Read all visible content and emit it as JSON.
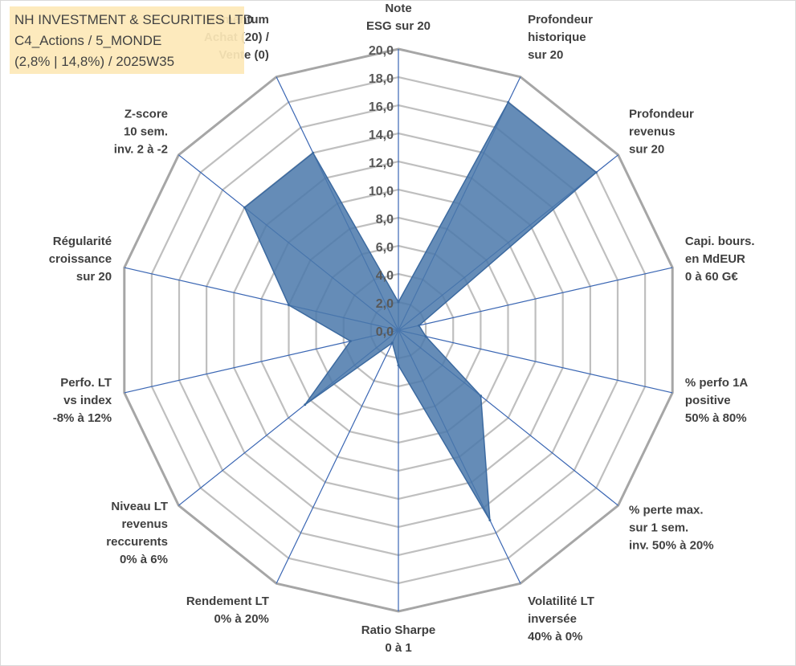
{
  "info_box": {
    "line1": "NH INVESTMENT & SECURITIES LTD",
    "line2": "C4_Actions / 5_MONDE",
    "line3": "(2,8% | 14,8%) / 2025W35"
  },
  "colors": {
    "series_fill": "#4a78aa",
    "series_stroke": "#3c6aa0",
    "grid": "#bfbfbf",
    "spokes": "#3a66b3",
    "info_bg": "#fde9b8"
  },
  "chart_data": {
    "type": "radar",
    "title": "",
    "range": [
      0,
      20
    ],
    "tick_step": 2,
    "tick_labels": [
      "0,0",
      "2,0",
      "4,0",
      "6,0",
      "8,0",
      "10,0",
      "12,0",
      "14,0",
      "16,0",
      "18,0",
      "20,0"
    ],
    "grid": true,
    "categories": [
      [
        "Note",
        "ESG sur 20"
      ],
      [
        "Profondeur",
        "historique",
        "sur 20"
      ],
      [
        "Profondeur",
        "revenus",
        "sur 20"
      ],
      [
        "Capi. bours.",
        "en MdEUR",
        "0 à 60 G€"
      ],
      [
        "% perfo 1A",
        "positive",
        "50% à 80%"
      ],
      [
        "% perte max.",
        "sur 1 sem.",
        "inv. 50% à 20%"
      ],
      [
        "Volatilité LT",
        "inversée",
        "40% à 0%"
      ],
      [
        "Ratio Sharpe",
        "0 à 1"
      ],
      [
        "Rendement LT",
        "0% à 20%"
      ],
      [
        "Niveau LT",
        "revenus",
        "reccurents",
        "0% à 6%"
      ],
      [
        "Perfo. LT",
        "vs index",
        "-8% à 12%"
      ],
      [
        "Régularité",
        "croissance",
        "sur 20"
      ],
      [
        "Z-score",
        "10 sem.",
        "inv. 2 à -2"
      ],
      [
        "Momentum",
        "Achat (20) /",
        "Vente (0)"
      ]
    ],
    "series": [
      {
        "values": [
          2.0,
          18.0,
          18.0,
          1.5,
          2.0,
          7.5,
          15.0,
          2.5,
          1.0,
          8.5,
          3.5,
          8.0,
          14.0,
          14.0
        ]
      }
    ]
  }
}
